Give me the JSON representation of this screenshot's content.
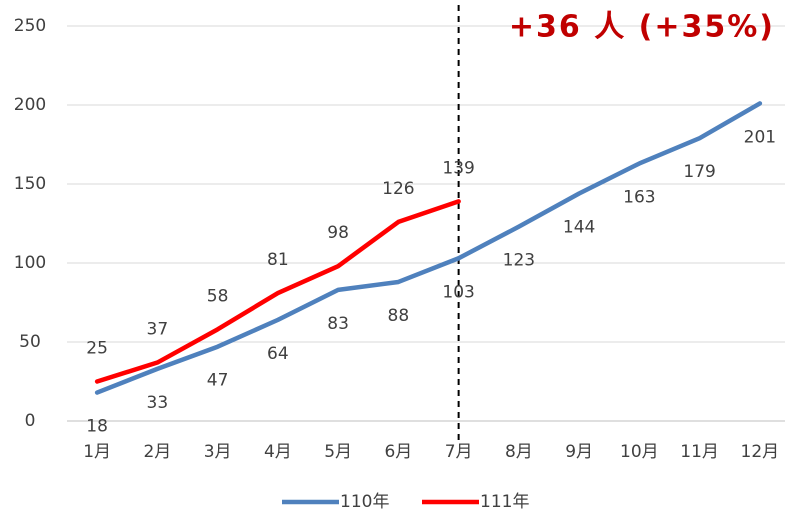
{
  "chart_data": {
    "type": "line",
    "annotation": "+36 人 (+35%)",
    "categories": [
      "1月",
      "2月",
      "3月",
      "4月",
      "5月",
      "6月",
      "7月",
      "8月",
      "9月",
      "10月",
      "11月",
      "12月"
    ],
    "series": [
      {
        "name": "110年",
        "color": "#4f81bd",
        "values": [
          18,
          33,
          47,
          64,
          83,
          88,
          103,
          123,
          144,
          163,
          179,
          201
        ]
      },
      {
        "name": "111年",
        "color": "#ff0000",
        "values": [
          25,
          37,
          58,
          81,
          98,
          126,
          139,
          null,
          null,
          null,
          null,
          null
        ]
      }
    ],
    "ylim": [
      0,
      250
    ],
    "yticks": [
      0,
      50,
      100,
      150,
      200,
      250
    ],
    "grid": true,
    "legend": "bottom"
  }
}
